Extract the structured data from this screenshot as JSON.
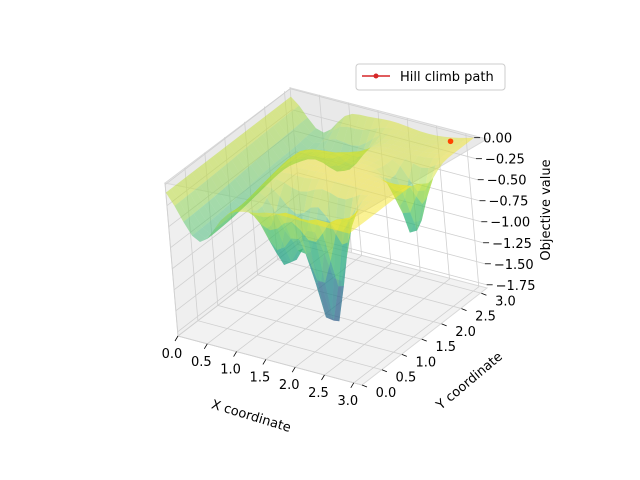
{
  "chart_data": {
    "type": "surface3d",
    "x_axis": {
      "label": "X coordinate",
      "ticks": [
        "0.0",
        "0.5",
        "1.0",
        "1.5",
        "2.0",
        "2.5",
        "3.0"
      ],
      "range": [
        0,
        3.14
      ]
    },
    "y_axis": {
      "label": "Y coordinate",
      "ticks": [
        "0.0",
        "0.5",
        "1.0",
        "1.5",
        "2.0",
        "2.5",
        "3.0"
      ],
      "range": [
        0,
        3.14
      ]
    },
    "z_axis": {
      "label": "Objective value",
      "ticks": [
        "0.00",
        "−0.25",
        "−0.50",
        "−0.75",
        "−1.00",
        "−1.25",
        "−1.50",
        "−1.75"
      ],
      "range": [
        -1.8,
        0.02
      ]
    },
    "colormap": "viridis",
    "legend": {
      "placement": "top-right",
      "entries": [
        {
          "label": "Hill climb path",
          "color": "#d62728"
        }
      ]
    },
    "path_points": [
      {
        "x": 2.9,
        "y": 2.9,
        "z": 0.0
      }
    ],
    "grid": true
  }
}
